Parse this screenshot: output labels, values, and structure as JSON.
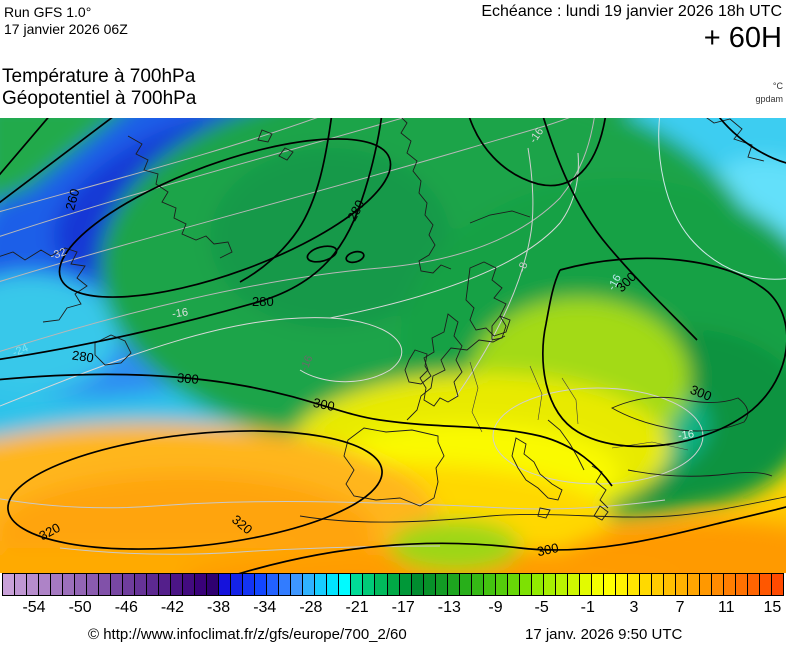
{
  "header": {
    "run_line1": "Run GFS 1.0°",
    "run_line2": "17 janvier 2026 06Z",
    "echeance": "Echéance : lundi 19 janvier 2026 18h UTC",
    "forecast_offset": "+ 60H",
    "param_line1": "Température à 700hPa",
    "param_line2": "Géopotentiel à 700hPa",
    "unit_temp": "°C",
    "unit_geo": "gpdam"
  },
  "map": {
    "geo_labels": [
      "260",
      "280",
      "280",
      "280",
      "300",
      "300",
      "300",
      "300",
      "300",
      "320",
      "320"
    ],
    "iso_labels": [
      "-32",
      "-24",
      "-16",
      "-16",
      "-8",
      "-16",
      "-16",
      "-16"
    ]
  },
  "map_palette": {
    "deep_blue_core": "#071c9e",
    "deep_blue": "#0b23bc",
    "blue": "#1638d6",
    "mid_blue": "#1f5fe8",
    "light_blue": "#2e8df2",
    "cyan_band": "#2fc3ea",
    "ne_cyan": "#3ccdf1",
    "main_green": "#1ea44a",
    "east_green": "#17a145",
    "teal_pocket": "#10b286",
    "yellow_green": "#a3da14",
    "europe_yellow": "#e8ea00",
    "gold": "#ffd800",
    "sw_orange": "#ffb61e",
    "deep_orange": "#ffa40c"
  },
  "colorbar": {
    "tick_labels": [
      "-54",
      "-50",
      "-46",
      "-42",
      "-38",
      "-34",
      "-28",
      "-21",
      "-17",
      "-13",
      "-9",
      "-5",
      "-1",
      "3",
      "7",
      "11",
      "15"
    ],
    "colors": [
      "#c9a1d9",
      "#c097d3",
      "#b78dcd",
      "#ae83c7",
      "#a579c1",
      "#9c6fbb",
      "#9365b5",
      "#8a5baf",
      "#8151a9",
      "#7847a3",
      "#6f3d9d",
      "#663397",
      "#5d2991",
      "#541f8b",
      "#4b1585",
      "#420b7f",
      "#390179",
      "#2f0070",
      "#1512dc",
      "#1423e8",
      "#1334f4",
      "#1246ff",
      "#2261ff",
      "#327cff",
      "#3e97ff",
      "#2fb2ff",
      "#17cdff",
      "#00e4ff",
      "#00fbff",
      "#00dc96",
      "#00cb78",
      "#00ba5c",
      "#00a946",
      "#009838",
      "#008c2f",
      "#079129",
      "#129b24",
      "#1da51f",
      "#28af1a",
      "#35b915",
      "#44c310",
      "#55cd0b",
      "#68d707",
      "#7de103",
      "#92eb00",
      "#a6ef00",
      "#baf300",
      "#cef700",
      "#e2fb00",
      "#f4ff00",
      "#ffff00",
      "#fff300",
      "#ffe600",
      "#ffd900",
      "#ffcc00",
      "#ffbf00",
      "#ffb200",
      "#ffa500",
      "#ff9800",
      "#ff8b00",
      "#ff7e00",
      "#ff7100",
      "#ff6400",
      "#ff5700",
      "#ff4a00"
    ]
  },
  "footer": {
    "copyright": "© http://www.infoclimat.fr/z/gfs/europe/700_2/60",
    "datetime": "17 janv. 2026  9:50 UTC"
  }
}
